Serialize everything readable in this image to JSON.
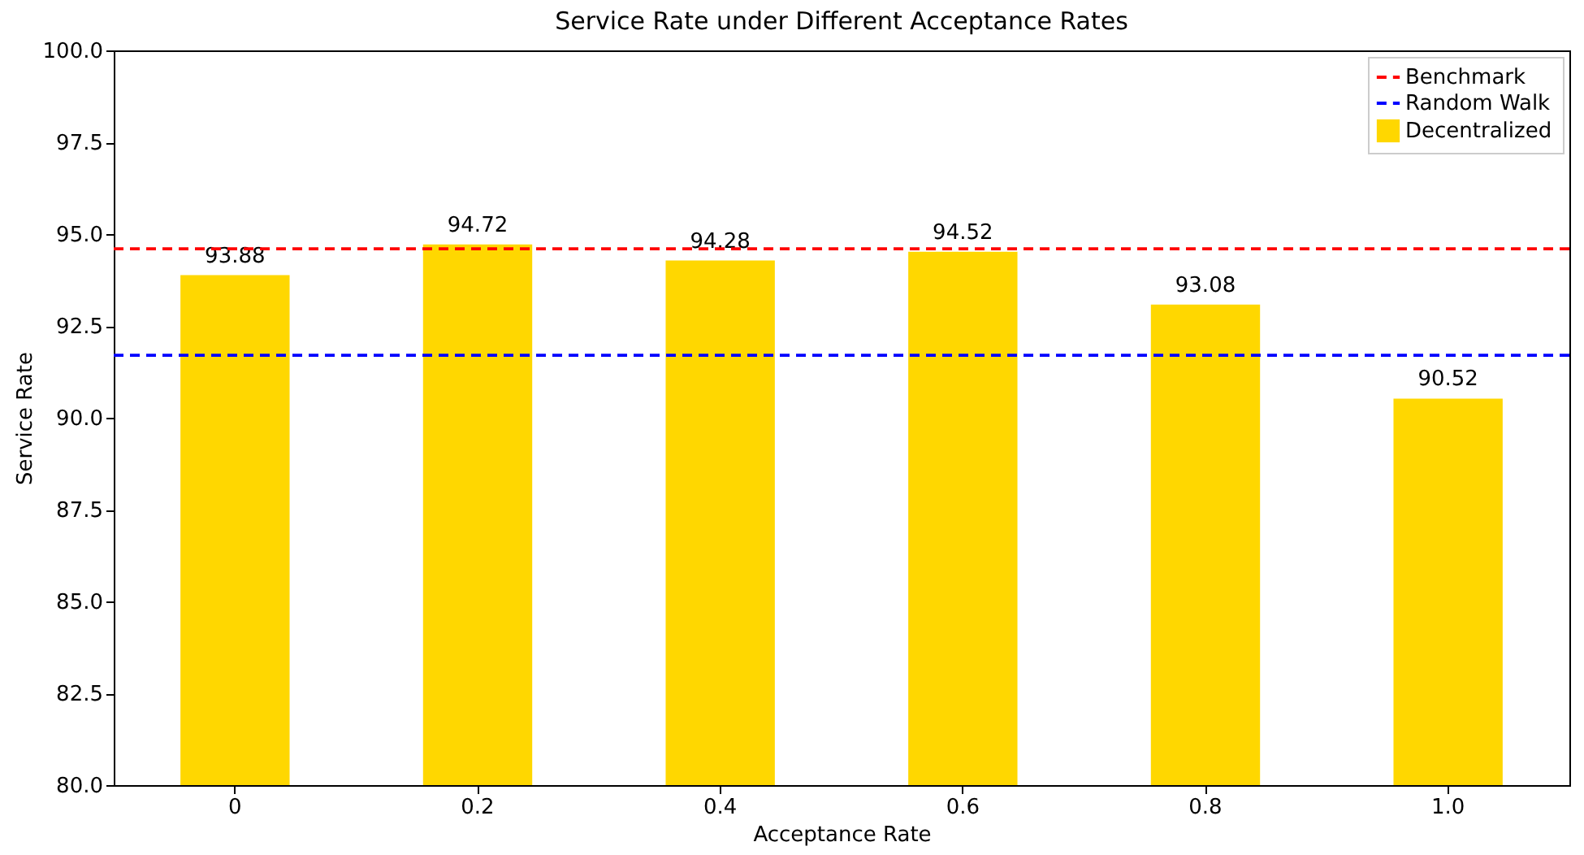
{
  "chart_data": {
    "type": "bar",
    "title": "Service Rate under Different Acceptance Rates",
    "xlabel": "Acceptance Rate",
    "ylabel": "Service Rate",
    "categories": [
      "0",
      "0.2",
      "0.4",
      "0.6",
      "0.8",
      "1.0"
    ],
    "series": [
      {
        "name": "Decentralized",
        "color": "#ffd700",
        "values": [
          93.88,
          94.72,
          94.28,
          94.52,
          93.08,
          90.52
        ]
      }
    ],
    "ylim": [
      80,
      100
    ],
    "yticks": [
      {
        "value": 80,
        "label": "80.0"
      },
      {
        "value": 82.5,
        "label": "82.5"
      },
      {
        "value": 85,
        "label": "85.0"
      },
      {
        "value": 87.5,
        "label": "87.5"
      },
      {
        "value": 90,
        "label": "90.0"
      },
      {
        "value": 92.5,
        "label": "92.5"
      },
      {
        "value": 95,
        "label": "95.0"
      },
      {
        "value": 97.5,
        "label": "97.5"
      },
      {
        "value": 100,
        "label": "100.0"
      }
    ],
    "ref_lines": [
      {
        "axis": "y",
        "value": 94.6,
        "label": "Benchmark",
        "color": "#ff0000",
        "line_style": "dashed"
      },
      {
        "axis": "y",
        "value": 91.7,
        "label": "Random Walk",
        "color": "#0000ff",
        "line_style": "dashed"
      }
    ],
    "data_labels": true,
    "legend": "top right"
  }
}
